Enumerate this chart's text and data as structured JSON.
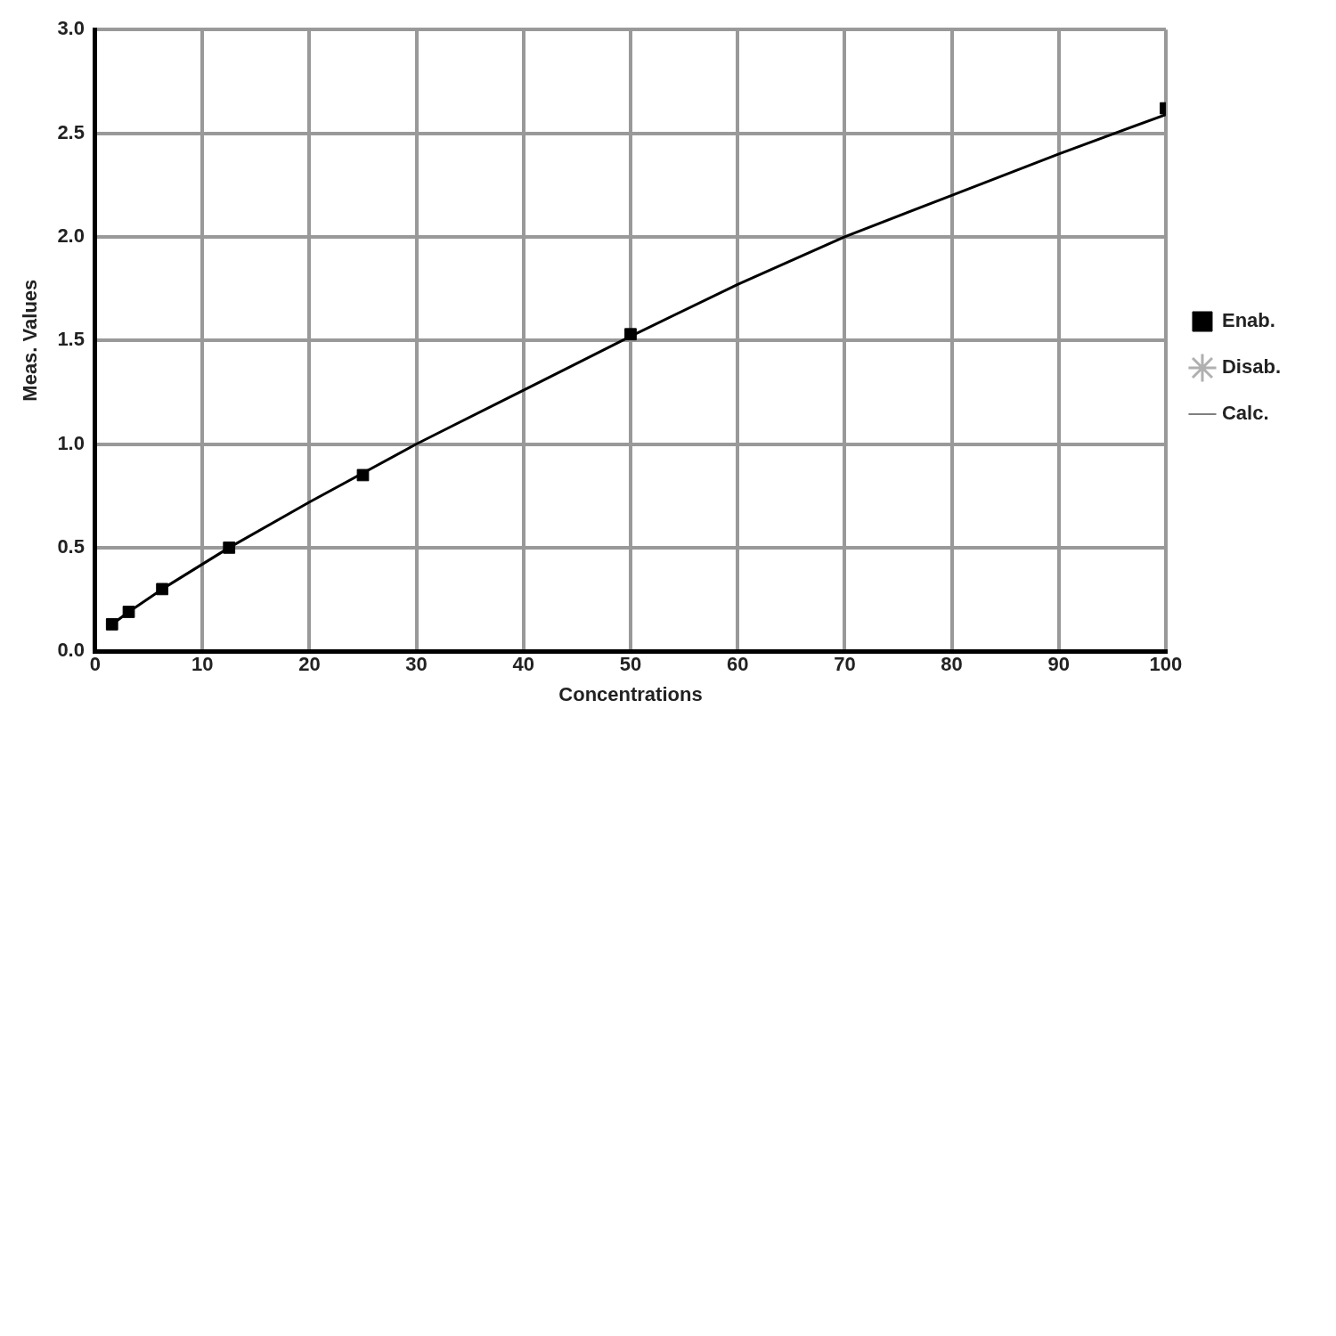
{
  "chart_data": {
    "type": "scatter",
    "xlabel": "Concentrations",
    "ylabel": "Meas. Values",
    "xlim": [
      0,
      100
    ],
    "xticks": [
      0,
      10,
      20,
      30,
      40,
      50,
      60,
      70,
      80,
      90,
      100
    ],
    "ylim": [
      0,
      3
    ],
    "yticks": [
      {
        "value": 0,
        "label": "0.0"
      },
      {
        "value": 0.5,
        "label": "0.5"
      },
      {
        "value": 1,
        "label": "1.0"
      },
      {
        "value": 1.5,
        "label": "1.5"
      },
      {
        "value": 2,
        "label": "2.0"
      },
      {
        "value": 2.5,
        "label": "2.5"
      },
      {
        "value": 3,
        "label": "3.0"
      }
    ],
    "grid": true,
    "legend": "right",
    "series": [
      {
        "name": "Enab.",
        "type": "scatter",
        "marker": "square",
        "color": "#000000",
        "x": [
          1.5625,
          3.125,
          6.25,
          12.5,
          25,
          50,
          100
        ],
        "values": [
          0.13,
          0.19,
          0.3,
          0.5,
          0.85,
          1.53,
          2.62
        ]
      },
      {
        "name": "Disab.",
        "type": "scatter",
        "marker": "star",
        "color": "#b0b0b0"
      },
      {
        "name": "Calc.",
        "type": "line",
        "marker": "none",
        "color": "#000000",
        "x": [
          1.5625,
          3.125,
          6.25,
          12.5,
          20,
          30,
          40,
          50,
          60,
          70,
          80,
          90,
          100
        ],
        "values": [
          0.13,
          0.19,
          0.3,
          0.5,
          0.72,
          1.0,
          1.26,
          1.52,
          1.77,
          2.0,
          2.2,
          2.4,
          2.59
        ]
      }
    ]
  }
}
